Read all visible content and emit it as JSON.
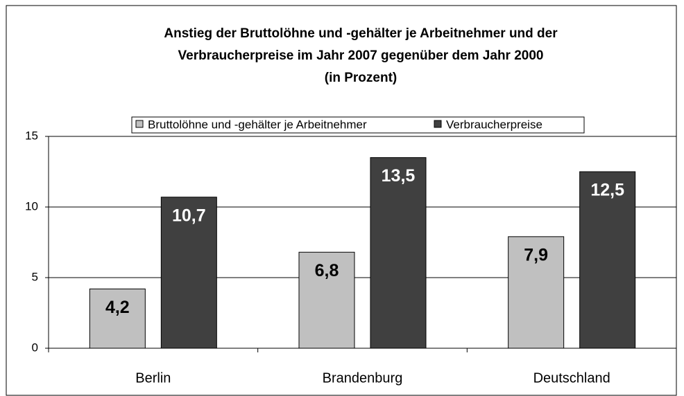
{
  "chart_data": {
    "type": "bar",
    "title": [
      "Anstieg der Bruttolöhne und -gehälter je Arbeitnehmer und der",
      "Verbraucherpreise im Jahr 2007 gegenüber dem Jahr 2000",
      "(in Prozent)"
    ],
    "categories": [
      "Berlin",
      "Brandenburg",
      "Deutschland"
    ],
    "series": [
      {
        "name": "Bruttolöhne und -gehälter je Arbeitnehmer",
        "color": "#c0c0c0",
        "values": [
          4.2,
          6.8,
          7.9
        ],
        "value_labels": [
          "4,2",
          "6,8",
          "7,9"
        ]
      },
      {
        "name": "Verbraucherpreise",
        "color": "#404040",
        "values": [
          10.7,
          13.5,
          12.5
        ],
        "value_labels": [
          "10,7",
          "13,5",
          "12,5"
        ]
      }
    ],
    "ylim": [
      0,
      15
    ],
    "yticks": [
      0,
      5,
      10,
      15
    ],
    "grid": true,
    "legend": "top"
  }
}
